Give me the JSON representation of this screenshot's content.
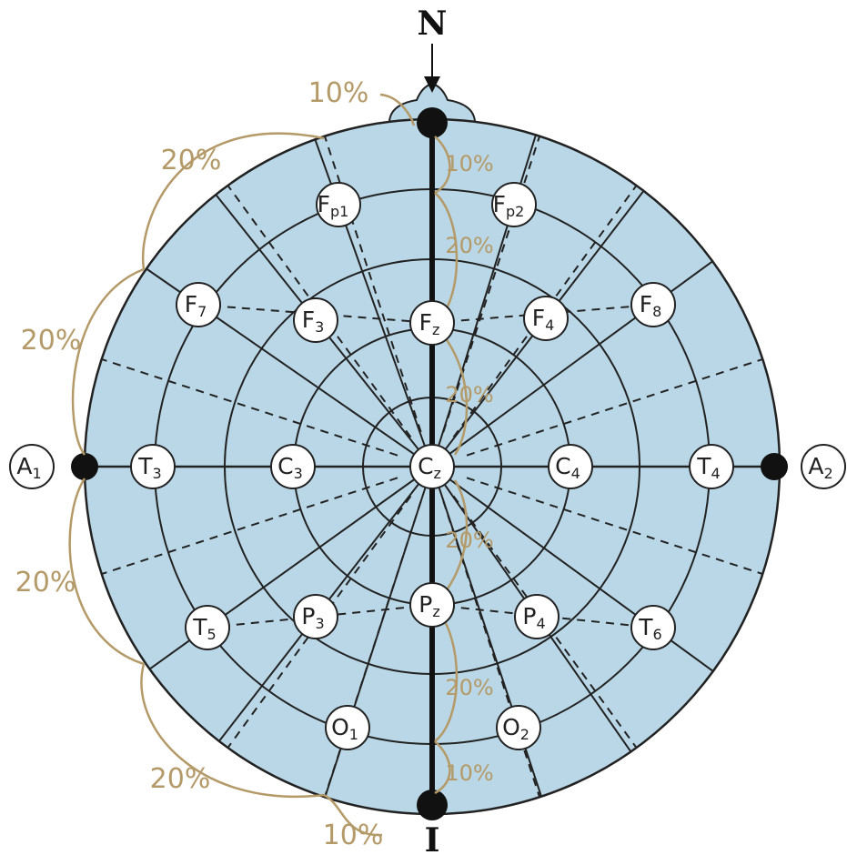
{
  "landmarks": {
    "nasion": "N",
    "inion": "I"
  },
  "electrodes": [
    {
      "id": "fp1",
      "main": "F",
      "sub": "p1"
    },
    {
      "id": "fp2",
      "main": "F",
      "sub": "p2"
    },
    {
      "id": "f7",
      "main": "F",
      "sub": "7"
    },
    {
      "id": "f3",
      "main": "F",
      "sub": "3"
    },
    {
      "id": "fz",
      "main": "F",
      "sub": "z"
    },
    {
      "id": "f4",
      "main": "F",
      "sub": "4"
    },
    {
      "id": "f8",
      "main": "F",
      "sub": "8"
    },
    {
      "id": "a1",
      "main": "A",
      "sub": "1"
    },
    {
      "id": "t3",
      "main": "T",
      "sub": "3"
    },
    {
      "id": "c3",
      "main": "C",
      "sub": "3"
    },
    {
      "id": "cz",
      "main": "C",
      "sub": "z"
    },
    {
      "id": "c4",
      "main": "C",
      "sub": "4"
    },
    {
      "id": "t4",
      "main": "T",
      "sub": "4"
    },
    {
      "id": "a2",
      "main": "A",
      "sub": "2"
    },
    {
      "id": "t5",
      "main": "T",
      "sub": "5"
    },
    {
      "id": "p3",
      "main": "P",
      "sub": "3"
    },
    {
      "id": "pz",
      "main": "P",
      "sub": "z"
    },
    {
      "id": "p4",
      "main": "P",
      "sub": "4"
    },
    {
      "id": "t6",
      "main": "T",
      "sub": "6"
    },
    {
      "id": "o1",
      "main": "O",
      "sub": "1"
    },
    {
      "id": "o2",
      "main": "O",
      "sub": "2"
    }
  ],
  "percentages": [
    {
      "id": "left-top-10",
      "text": "10%"
    },
    {
      "id": "left-20-upper",
      "text": "20%"
    },
    {
      "id": "left-20-mid-upper",
      "text": "20%"
    },
    {
      "id": "left-20-mid-lower",
      "text": "20%"
    },
    {
      "id": "left-20-lower",
      "text": "20%"
    },
    {
      "id": "left-bottom-10",
      "text": "10%"
    },
    {
      "id": "mid-10-top",
      "text": "10%"
    },
    {
      "id": "mid-20-1",
      "text": "20%"
    },
    {
      "id": "mid-20-2",
      "text": "20%"
    },
    {
      "id": "mid-20-3",
      "text": "20%"
    },
    {
      "id": "mid-20-4",
      "text": "20%"
    },
    {
      "id": "mid-10-bottom",
      "text": "10%"
    }
  ],
  "colors": {
    "head_fill": "#b9d7e6",
    "line": "#222222",
    "measure": "#b49a68",
    "electrode_fill": "#ffffff"
  }
}
